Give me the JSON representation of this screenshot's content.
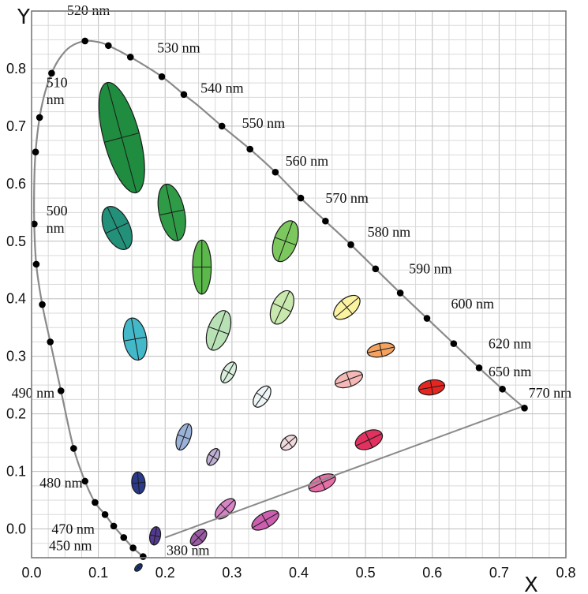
{
  "chart_data": {
    "type": "scatter",
    "title": "",
    "xlabel": "X",
    "ylabel": "Y",
    "xlim": [
      0.0,
      0.8
    ],
    "ylim": [
      -0.05,
      0.9
    ],
    "grid": true,
    "x_ticks": [
      "0.0",
      "0.1",
      "0.2",
      "0.3",
      "0.4",
      "0.5",
      "0.6",
      "0.7",
      "0.8"
    ],
    "y_ticks": [
      "0.0",
      "0.1",
      "0.2",
      "0.3",
      "0.4",
      "0.5",
      "0.6",
      "0.7",
      "0.8"
    ],
    "spectral_locus": [
      [
        0.167,
        -0.048
      ],
      [
        0.152,
        -0.033
      ],
      [
        0.138,
        -0.015
      ],
      [
        0.123,
        0.005
      ],
      [
        0.11,
        0.025
      ],
      [
        0.095,
        0.046
      ],
      [
        0.08,
        0.083
      ],
      [
        0.063,
        0.14
      ],
      [
        0.044,
        0.24
      ],
      [
        0.028,
        0.325
      ],
      [
        0.016,
        0.39
      ],
      [
        0.007,
        0.46
      ],
      [
        0.004,
        0.53
      ],
      [
        0.004,
        0.6
      ],
      [
        0.006,
        0.655
      ],
      [
        0.012,
        0.715
      ],
      [
        0.02,
        0.758
      ],
      [
        0.03,
        0.792
      ],
      [
        0.042,
        0.818
      ],
      [
        0.058,
        0.838
      ],
      [
        0.08,
        0.848
      ],
      [
        0.1,
        0.846
      ],
      [
        0.115,
        0.84
      ],
      [
        0.148,
        0.82
      ],
      [
        0.195,
        0.786
      ],
      [
        0.228,
        0.755
      ],
      [
        0.25,
        0.735
      ],
      [
        0.285,
        0.7
      ],
      [
        0.327,
        0.66
      ],
      [
        0.365,
        0.62
      ],
      [
        0.403,
        0.575
      ],
      [
        0.44,
        0.535
      ],
      [
        0.478,
        0.494
      ],
      [
        0.515,
        0.452
      ],
      [
        0.552,
        0.41
      ],
      [
        0.592,
        0.366
      ],
      [
        0.632,
        0.322
      ],
      [
        0.67,
        0.28
      ],
      [
        0.705,
        0.243
      ],
      [
        0.738,
        0.21
      ]
    ],
    "locus_points": [
      [
        0.167,
        -0.048
      ],
      [
        0.152,
        -0.033
      ],
      [
        0.138,
        -0.015
      ],
      [
        0.123,
        0.005
      ],
      [
        0.11,
        0.025
      ],
      [
        0.095,
        0.046
      ],
      [
        0.08,
        0.083
      ],
      [
        0.063,
        0.14
      ],
      [
        0.044,
        0.24
      ],
      [
        0.028,
        0.325
      ],
      [
        0.016,
        0.39
      ],
      [
        0.007,
        0.46
      ],
      [
        0.004,
        0.53
      ],
      [
        0.006,
        0.655
      ],
      [
        0.012,
        0.715
      ],
      [
        0.03,
        0.792
      ],
      [
        0.08,
        0.848
      ],
      [
        0.115,
        0.84
      ],
      [
        0.148,
        0.82
      ],
      [
        0.195,
        0.786
      ],
      [
        0.228,
        0.755
      ],
      [
        0.285,
        0.7
      ],
      [
        0.327,
        0.66
      ],
      [
        0.365,
        0.62
      ],
      [
        0.403,
        0.575
      ],
      [
        0.44,
        0.535
      ],
      [
        0.478,
        0.494
      ],
      [
        0.515,
        0.452
      ],
      [
        0.552,
        0.41
      ],
      [
        0.592,
        0.366
      ],
      [
        0.632,
        0.322
      ],
      [
        0.67,
        0.28
      ],
      [
        0.705,
        0.243
      ],
      [
        0.738,
        0.21
      ]
    ],
    "purple_line": [
      [
        0.2,
        -0.015
      ],
      [
        0.735,
        0.213
      ]
    ],
    "wavelength_labels": [
      {
        "text": "520 nm",
        "x": 0.053,
        "y": 0.893,
        "anchor": "start"
      },
      {
        "text": "530 nm",
        "x": 0.188,
        "y": 0.828,
        "anchor": "start"
      },
      {
        "text": "540 nm",
        "x": 0.253,
        "y": 0.758,
        "anchor": "start"
      },
      {
        "text": "550 nm",
        "x": 0.315,
        "y": 0.697,
        "anchor": "start"
      },
      {
        "text": "560 nm",
        "x": 0.38,
        "y": 0.631,
        "anchor": "start"
      },
      {
        "text": "570 nm",
        "x": 0.44,
        "y": 0.567,
        "anchor": "start"
      },
      {
        "text": "580 nm",
        "x": 0.503,
        "y": 0.508,
        "anchor": "start"
      },
      {
        "text": "590 nm",
        "x": 0.565,
        "y": 0.444,
        "anchor": "start"
      },
      {
        "text": "600 nm",
        "x": 0.628,
        "y": 0.383,
        "anchor": "start"
      },
      {
        "text": "620 nm",
        "x": 0.684,
        "y": 0.314,
        "anchor": "start"
      },
      {
        "text": "650 nm",
        "x": 0.684,
        "y": 0.265,
        "anchor": "start"
      },
      {
        "text": "770 nm",
        "x": 0.744,
        "y": 0.228,
        "anchor": "start"
      },
      {
        "text": "510",
        "x": 0.022,
        "y": 0.768,
        "anchor": "start"
      },
      {
        "text": "nm",
        "x": 0.022,
        "y": 0.738,
        "anchor": "start"
      },
      {
        "text": "500",
        "x": 0.022,
        "y": 0.545,
        "anchor": "start"
      },
      {
        "text": "nm",
        "x": 0.022,
        "y": 0.515,
        "anchor": "start"
      },
      {
        "text": "490 nm",
        "x": -0.03,
        "y": 0.228,
        "anchor": "start"
      },
      {
        "text": "480 nm",
        "x": 0.012,
        "y": 0.072,
        "anchor": "start"
      },
      {
        "text": "470 nm",
        "x": 0.03,
        "y": -0.008,
        "anchor": "start"
      },
      {
        "text": "450 nm",
        "x": 0.026,
        "y": -0.037,
        "anchor": "start"
      },
      {
        "text": "380 nm",
        "x": 0.202,
        "y": -0.045,
        "anchor": "start"
      }
    ],
    "ellipses": [
      {
        "cx": 0.135,
        "cy": 0.68,
        "rx": 0.027,
        "ry": 0.099,
        "rot": -15,
        "color": "#1f8c3f"
      },
      {
        "cx": 0.21,
        "cy": 0.55,
        "rx": 0.019,
        "ry": 0.05,
        "rot": -12,
        "color": "#2f9b47"
      },
      {
        "cx": 0.128,
        "cy": 0.523,
        "rx": 0.019,
        "ry": 0.04,
        "rot": -25,
        "color": "#23907a"
      },
      {
        "cx": 0.255,
        "cy": 0.455,
        "rx": 0.014,
        "ry": 0.047,
        "rot": 0,
        "color": "#5bb84a"
      },
      {
        "cx": 0.38,
        "cy": 0.5,
        "rx": 0.017,
        "ry": 0.037,
        "rot": 20,
        "color": "#7cc85e"
      },
      {
        "cx": 0.155,
        "cy": 0.33,
        "rx": 0.017,
        "ry": 0.037,
        "rot": -10,
        "color": "#43b8c8"
      },
      {
        "cx": 0.28,
        "cy": 0.345,
        "rx": 0.016,
        "ry": 0.036,
        "rot": 20,
        "color": "#b8e2b6"
      },
      {
        "cx": 0.375,
        "cy": 0.385,
        "rx": 0.015,
        "ry": 0.031,
        "rot": 25,
        "color": "#c8e8ae"
      },
      {
        "cx": 0.472,
        "cy": 0.385,
        "rx": 0.013,
        "ry": 0.027,
        "rot": 50,
        "color": "#fbf3a0"
      },
      {
        "cx": 0.523,
        "cy": 0.311,
        "rx": 0.01,
        "ry": 0.024,
        "rot": 78,
        "color": "#f4a25f"
      },
      {
        "cx": 0.295,
        "cy": 0.272,
        "rx": 0.009,
        "ry": 0.02,
        "rot": 30,
        "color": "#d8efdc"
      },
      {
        "cx": 0.345,
        "cy": 0.23,
        "rx": 0.01,
        "ry": 0.021,
        "rot": 35,
        "color": "#eef5f6"
      },
      {
        "cx": 0.475,
        "cy": 0.26,
        "rx": 0.011,
        "ry": 0.025,
        "rot": 70,
        "color": "#f4b8b6"
      },
      {
        "cx": 0.599,
        "cy": 0.246,
        "rx": 0.011,
        "ry": 0.023,
        "rot": 80,
        "color": "#e72520"
      },
      {
        "cx": 0.228,
        "cy": 0.16,
        "rx": 0.01,
        "ry": 0.024,
        "rot": 20,
        "color": "#9ab2d8"
      },
      {
        "cx": 0.272,
        "cy": 0.125,
        "rx": 0.008,
        "ry": 0.016,
        "rot": 30,
        "color": "#bfb0d3"
      },
      {
        "cx": 0.385,
        "cy": 0.15,
        "rx": 0.009,
        "ry": 0.016,
        "rot": 50,
        "color": "#f1d8dc"
      },
      {
        "cx": 0.505,
        "cy": 0.155,
        "rx": 0.013,
        "ry": 0.025,
        "rot": 65,
        "color": "#e2315f"
      },
      {
        "cx": 0.435,
        "cy": 0.08,
        "rx": 0.011,
        "ry": 0.025,
        "rot": 65,
        "color": "#e66fa7"
      },
      {
        "cx": 0.16,
        "cy": 0.08,
        "rx": 0.01,
        "ry": 0.019,
        "rot": -5,
        "color": "#2a3a8a"
      },
      {
        "cx": 0.29,
        "cy": 0.035,
        "rx": 0.01,
        "ry": 0.022,
        "rot": 45,
        "color": "#d684c4"
      },
      {
        "cx": 0.35,
        "cy": 0.015,
        "rx": 0.011,
        "ry": 0.026,
        "rot": 60,
        "color": "#cc5faf"
      },
      {
        "cx": 0.185,
        "cy": -0.012,
        "rx": 0.008,
        "ry": 0.016,
        "rot": 10,
        "color": "#523a8f"
      },
      {
        "cx": 0.25,
        "cy": -0.015,
        "rx": 0.009,
        "ry": 0.017,
        "rot": 45,
        "color": "#9b5ba4"
      },
      {
        "cx": 0.16,
        "cy": -0.067,
        "rx": 0.004,
        "ry": 0.008,
        "rot": 45,
        "color": "#1d3f8e"
      }
    ]
  }
}
